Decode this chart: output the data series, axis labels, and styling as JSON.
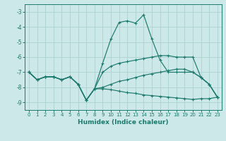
{
  "xlabel": "Humidex (Indice chaleur)",
  "background_color": "#cde8e8",
  "grid_color": "#b0d4d4",
  "line_color": "#1a7a6e",
  "xlim": [
    -0.5,
    23.5
  ],
  "ylim": [
    -9.5,
    -2.5
  ],
  "yticks": [
    -9,
    -8,
    -7,
    -6,
    -5,
    -4,
    -3
  ],
  "xticks": [
    0,
    1,
    2,
    3,
    4,
    5,
    6,
    7,
    8,
    9,
    10,
    11,
    12,
    13,
    14,
    15,
    16,
    17,
    18,
    19,
    20,
    21,
    22,
    23
  ],
  "series": [
    {
      "x": [
        0,
        1,
        2,
        3,
        4,
        5,
        6,
        7,
        8,
        9,
        10,
        11,
        12,
        13,
        14,
        15,
        16,
        17,
        18,
        19,
        20,
        21,
        22,
        23
      ],
      "y": [
        -7.0,
        -7.5,
        -7.3,
        -7.3,
        -7.5,
        -7.3,
        -7.8,
        -8.85,
        -8.1,
        -6.4,
        -4.8,
        -3.7,
        -3.6,
        -3.75,
        -3.2,
        -4.8,
        -6.2,
        -7.0,
        -7.0,
        -7.0,
        -7.0,
        -7.35,
        -7.8,
        -8.65
      ]
    },
    {
      "x": [
        0,
        1,
        2,
        3,
        4,
        5,
        6,
        7,
        8,
        9,
        10,
        11,
        12,
        13,
        14,
        15,
        16,
        17,
        18,
        19,
        20,
        21,
        22,
        23
      ],
      "y": [
        -7.0,
        -7.5,
        -7.3,
        -7.3,
        -7.5,
        -7.3,
        -7.8,
        -8.85,
        -8.1,
        -7.0,
        -6.6,
        -6.4,
        -6.3,
        -6.2,
        -6.1,
        -6.0,
        -5.9,
        -5.9,
        -6.0,
        -6.0,
        -6.0,
        -7.35,
        -7.8,
        -8.65
      ]
    },
    {
      "x": [
        0,
        1,
        2,
        3,
        4,
        5,
        6,
        7,
        8,
        9,
        10,
        11,
        12,
        13,
        14,
        15,
        16,
        17,
        18,
        19,
        20,
        21,
        22,
        23
      ],
      "y": [
        -7.0,
        -7.5,
        -7.3,
        -7.3,
        -7.5,
        -7.3,
        -7.8,
        -8.85,
        -8.1,
        -8.0,
        -7.8,
        -7.6,
        -7.5,
        -7.35,
        -7.2,
        -7.1,
        -7.0,
        -6.9,
        -6.8,
        -6.8,
        -7.0,
        -7.35,
        -7.8,
        -8.65
      ]
    },
    {
      "x": [
        0,
        1,
        2,
        3,
        4,
        5,
        6,
        7,
        8,
        9,
        10,
        11,
        12,
        13,
        14,
        15,
        16,
        17,
        18,
        19,
        20,
        21,
        22,
        23
      ],
      "y": [
        -7.0,
        -7.5,
        -7.3,
        -7.3,
        -7.5,
        -7.3,
        -7.8,
        -8.85,
        -8.1,
        -8.1,
        -8.15,
        -8.25,
        -8.35,
        -8.4,
        -8.5,
        -8.55,
        -8.6,
        -8.65,
        -8.7,
        -8.75,
        -8.8,
        -8.75,
        -8.75,
        -8.65
      ]
    }
  ]
}
